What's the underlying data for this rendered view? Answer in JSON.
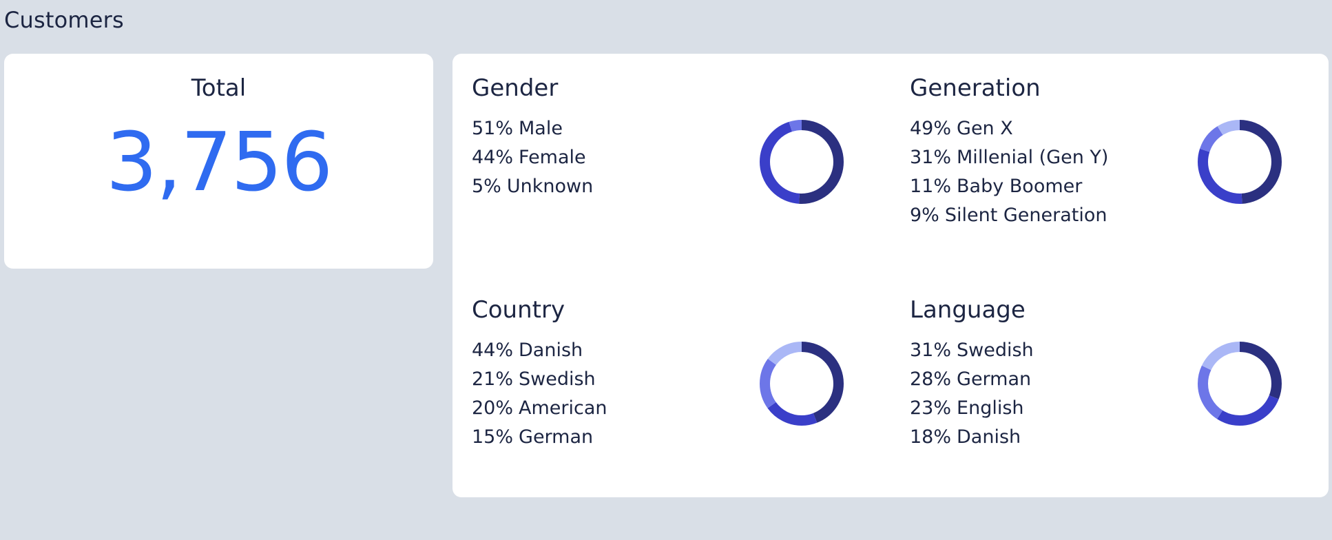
{
  "page": {
    "title": "Customers"
  },
  "total": {
    "label": "Total",
    "value": "3,756"
  },
  "panels": [
    {
      "title": "Gender",
      "items": [
        {
          "pct": 51,
          "pct_label": "51%",
          "label": "Male"
        },
        {
          "pct": 44,
          "pct_label": "44%",
          "label": "Female"
        },
        {
          "pct": 5,
          "pct_label": "5%",
          "label": "Unknown"
        }
      ]
    },
    {
      "title": "Generation",
      "items": [
        {
          "pct": 49,
          "pct_label": "49%",
          "label": "Gen X"
        },
        {
          "pct": 31,
          "pct_label": "31%",
          "label": "Millenial (Gen Y)"
        },
        {
          "pct": 11,
          "pct_label": "11%",
          "label": "Baby Boomer"
        },
        {
          "pct": 9,
          "pct_label": "9%",
          "label": "Silent Generation"
        }
      ]
    },
    {
      "title": "Country",
      "items": [
        {
          "pct": 44,
          "pct_label": "44%",
          "label": "Danish"
        },
        {
          "pct": 21,
          "pct_label": "21%",
          "label": "Swedish"
        },
        {
          "pct": 20,
          "pct_label": "20%",
          "label": "American"
        },
        {
          "pct": 15,
          "pct_label": "15%",
          "label": "German"
        }
      ]
    },
    {
      "title": "Language",
      "items": [
        {
          "pct": 31,
          "pct_label": "31%",
          "label": "Swedish"
        },
        {
          "pct": 28,
          "pct_label": "28%",
          "label": "German"
        },
        {
          "pct": 23,
          "pct_label": "23%",
          "label": "English"
        },
        {
          "pct": 18,
          "pct_label": "18%",
          "label": "Danish"
        }
      ]
    }
  ],
  "colors": {
    "accent": "#2f6bf0",
    "segments": [
      "#2b3080",
      "#3a3fc9",
      "#6d76e8",
      "#aab7f6"
    ]
  }
}
